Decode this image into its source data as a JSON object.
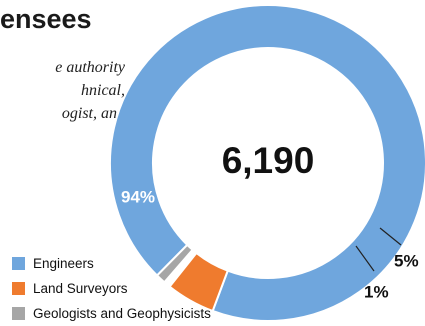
{
  "header": {
    "title": "ensees",
    "subtitle_lines": [
      "e authority",
      "hnical,",
      "ogist, and"
    ]
  },
  "chart_data": {
    "type": "pie",
    "variant": "donut",
    "center_label": "6,190",
    "categories": [
      "Engineers",
      "Land Surveyors",
      "Geologists and Geophysicists"
    ],
    "values": [
      94,
      5,
      1
    ],
    "value_labels": [
      "94%",
      "5%",
      "1%"
    ],
    "unit": "%",
    "colors": [
      "#6fa6dd",
      "#ef7b2e",
      "#a6a6a6"
    ],
    "legend_position": "bottom-left"
  }
}
